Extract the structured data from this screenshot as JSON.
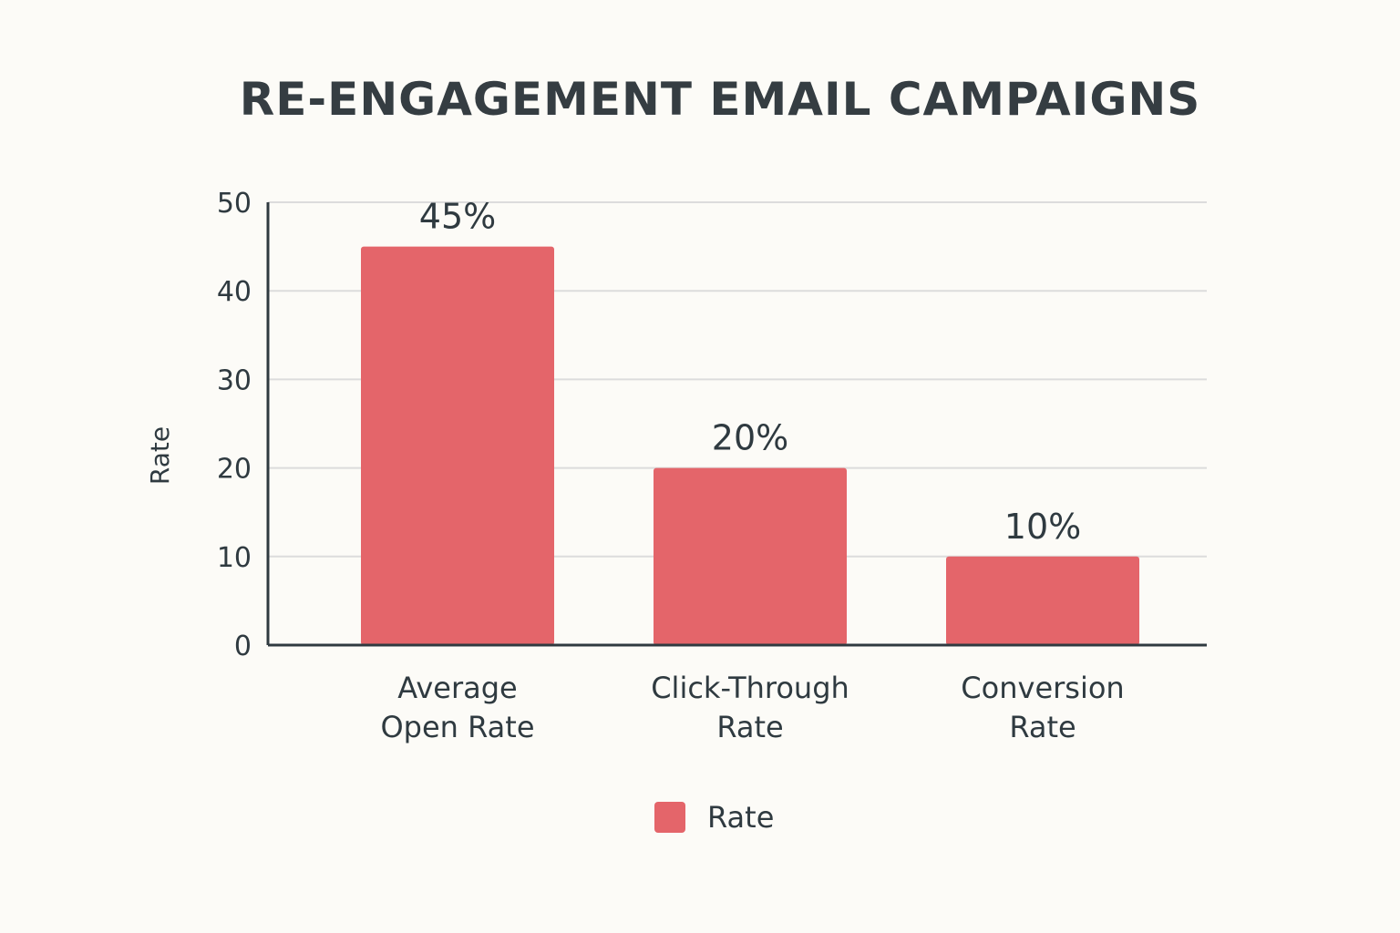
{
  "chart_data": {
    "type": "bar",
    "title": "RE-ENGAGEMENT EMAIL CAMPAIGNS",
    "categories": [
      [
        "Average",
        "Open Rate"
      ],
      [
        "Click-Through",
        "Rate"
      ],
      [
        "Conversion",
        "Rate"
      ]
    ],
    "series": [
      {
        "name": "Rate",
        "values": [
          45,
          20,
          10
        ],
        "data_labels": [
          "45%",
          "20%",
          "10%"
        ],
        "color": "#e4656a"
      }
    ],
    "xlabel": "",
    "ylabel": "Rate",
    "ylim": [
      0,
      50
    ],
    "yticks": [
      0,
      10,
      20,
      30,
      40,
      50
    ],
    "grid": true,
    "legend_position": "bottom-center"
  },
  "colors": {
    "background": "#fcfbf7",
    "bar": "#e4656a",
    "grid": "#dcdcdc",
    "axis": "#2f3a40",
    "text": "#2f3a40"
  }
}
